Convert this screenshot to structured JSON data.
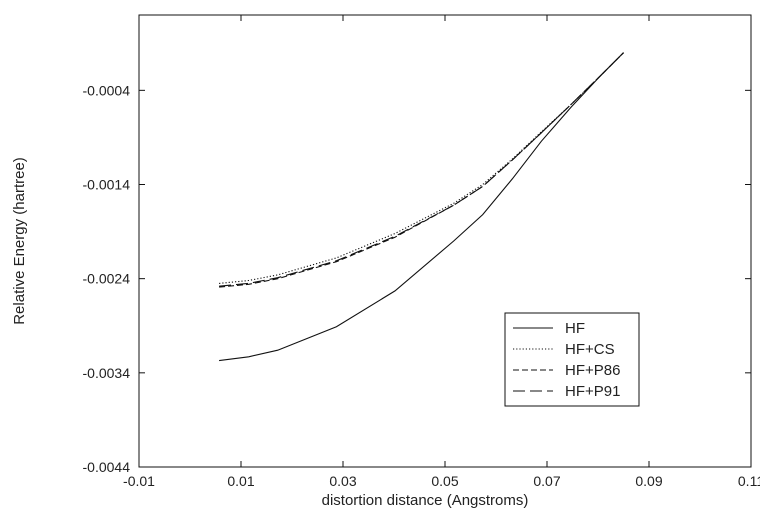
{
  "chart_data": {
    "type": "line",
    "title": "",
    "xlabel": "distortion distance (Angstroms)",
    "ylabel": "Relative Energy (hartree)",
    "xlim": [
      -0.01,
      0.11
    ],
    "ylim": [
      -0.0044,
      0.0004
    ],
    "x_ticks": [
      -0.01,
      0.01,
      0.03,
      0.05,
      0.07,
      0.09,
      0.11
    ],
    "x_tick_labels": [
      "-0.01",
      "0.01",
      "0.03",
      "0.05",
      "0.07",
      "0.09",
      "0.11"
    ],
    "y_ticks": [
      -0.0044,
      -0.0034,
      -0.0024,
      -0.0014,
      -0.0004
    ],
    "y_tick_labels": [
      "-0.0044",
      "-0.0034",
      "-0.0024",
      "-0.0014",
      "-0.0004"
    ],
    "grid": false,
    "legend_position": "lower-right",
    "series": [
      {
        "name": "HF",
        "style": "solid",
        "x": [
          0.0057,
          0.0115,
          0.0172,
          0.0287,
          0.0402,
          0.0517,
          0.0574,
          0.0632,
          0.0689,
          0.0747,
          0.0804,
          0.085
        ],
        "y": [
          -0.00327,
          -0.00323,
          -0.00316,
          -0.00291,
          -0.00253,
          -0.002,
          -0.00172,
          -0.00134,
          -0.00094,
          -0.00058,
          -0.00025,
          0.0
        ]
      },
      {
        "name": "HF+CS",
        "style": "dotted",
        "x": [
          0.0057,
          0.0115,
          0.0172,
          0.0287,
          0.0402,
          0.0517,
          0.0574,
          0.0632,
          0.0689,
          0.0747,
          0.0804,
          0.085
        ],
        "y": [
          -0.00245,
          -0.00242,
          -0.00236,
          -0.00218,
          -0.00192,
          -0.0016,
          -0.0014,
          -0.00113,
          -0.00084,
          -0.00055,
          -0.00025,
          0.0
        ]
      },
      {
        "name": "HF+P86",
        "style": "dashed",
        "x": [
          0.0057,
          0.0115,
          0.0172,
          0.0287,
          0.0402,
          0.0517,
          0.0574,
          0.0632,
          0.0689,
          0.0747,
          0.0804,
          0.085
        ],
        "y": [
          -0.00249,
          -0.00246,
          -0.0024,
          -0.00222,
          -0.00196,
          -0.00162,
          -0.00142,
          -0.00114,
          -0.00085,
          -0.00055,
          -0.00025,
          0.0
        ]
      },
      {
        "name": "HF+P91",
        "style": "longdash",
        "x": [
          0.0057,
          0.0115,
          0.0172,
          0.0287,
          0.0402,
          0.0517,
          0.0574,
          0.0632,
          0.0689,
          0.0747,
          0.0804,
          0.085
        ],
        "y": [
          -0.00248,
          -0.00245,
          -0.00239,
          -0.00221,
          -0.00195,
          -0.00162,
          -0.00142,
          -0.00114,
          -0.00085,
          -0.00055,
          -0.00025,
          0.0
        ]
      }
    ]
  }
}
